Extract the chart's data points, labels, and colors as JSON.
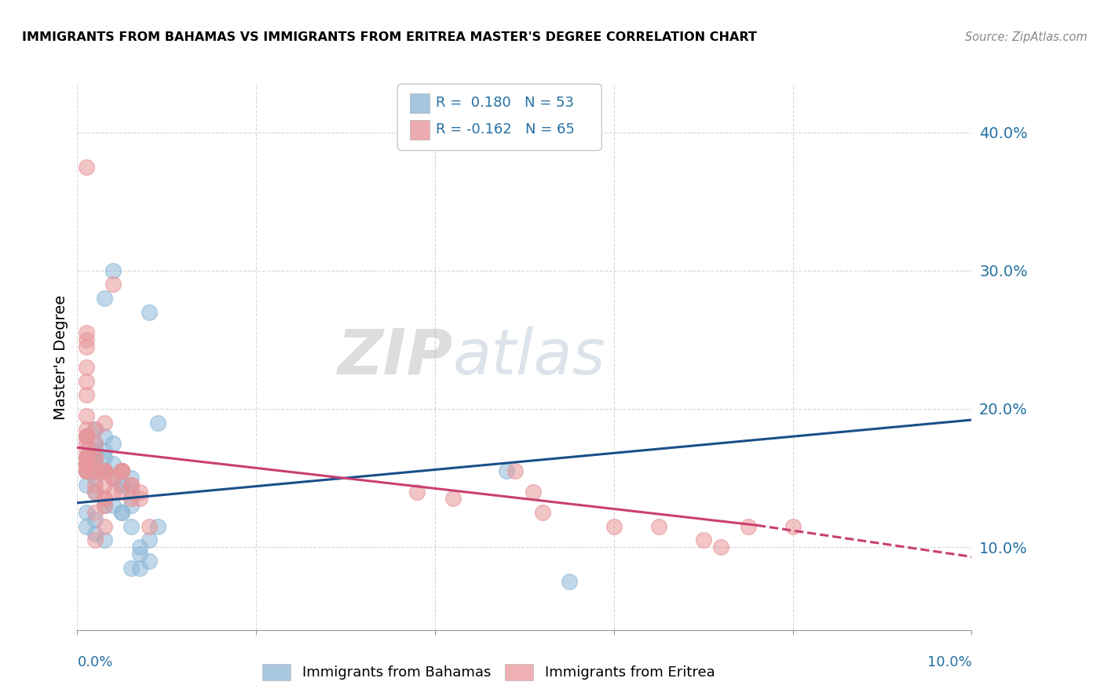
{
  "title": "IMMIGRANTS FROM BAHAMAS VS IMMIGRANTS FROM ERITREA MASTER'S DEGREE CORRELATION CHART",
  "source": "Source: ZipAtlas.com",
  "ylabel": "Master's Degree",
  "y_ticks": [
    0.1,
    0.2,
    0.3,
    0.4
  ],
  "y_tick_labels": [
    "10.0%",
    "20.0%",
    "30.0%",
    "40.0%"
  ],
  "xlim": [
    0.0,
    0.1
  ],
  "ylim": [
    0.04,
    0.435
  ],
  "legend_r1": "R =  0.180",
  "legend_n1": "N = 53",
  "legend_r2": "R = -0.162",
  "legend_n2": "N = 65",
  "color_blue": "#8DB8D8",
  "color_pink": "#E8969A",
  "line_blue": "#1B4F8A",
  "line_pink": "#C94070",
  "watermark_zip": "ZIP",
  "watermark_atlas": "atlas",
  "bahamas_x": [
    0.001,
    0.002,
    0.001,
    0.001,
    0.002,
    0.001,
    0.002,
    0.001,
    0.002,
    0.003,
    0.001,
    0.002,
    0.001,
    0.002,
    0.003,
    0.002,
    0.001,
    0.002,
    0.003,
    0.002,
    0.003,
    0.002,
    0.003,
    0.002,
    0.003,
    0.004,
    0.003,
    0.004,
    0.003,
    0.003,
    0.004,
    0.005,
    0.004,
    0.005,
    0.004,
    0.005,
    0.006,
    0.005,
    0.006,
    0.005,
    0.006,
    0.007,
    0.006,
    0.007,
    0.008,
    0.007,
    0.008,
    0.009,
    0.006,
    0.008,
    0.009,
    0.048,
    0.055
  ],
  "bahamas_y": [
    0.155,
    0.17,
    0.18,
    0.165,
    0.155,
    0.16,
    0.15,
    0.145,
    0.14,
    0.13,
    0.125,
    0.12,
    0.115,
    0.11,
    0.105,
    0.16,
    0.155,
    0.165,
    0.17,
    0.175,
    0.18,
    0.185,
    0.155,
    0.165,
    0.155,
    0.16,
    0.165,
    0.175,
    0.28,
    0.155,
    0.15,
    0.145,
    0.13,
    0.125,
    0.3,
    0.155,
    0.15,
    0.145,
    0.13,
    0.125,
    0.115,
    0.095,
    0.085,
    0.085,
    0.09,
    0.1,
    0.105,
    0.115,
    0.14,
    0.27,
    0.19,
    0.155,
    0.075
  ],
  "eritrea_x": [
    0.001,
    0.001,
    0.001,
    0.001,
    0.001,
    0.001,
    0.001,
    0.001,
    0.001,
    0.001,
    0.001,
    0.001,
    0.001,
    0.001,
    0.001,
    0.001,
    0.001,
    0.002,
    0.001,
    0.002,
    0.001,
    0.002,
    0.001,
    0.002,
    0.001,
    0.002,
    0.003,
    0.002,
    0.003,
    0.002,
    0.003,
    0.002,
    0.003,
    0.002,
    0.003,
    0.002,
    0.003,
    0.003,
    0.004,
    0.003,
    0.004,
    0.003,
    0.004,
    0.005,
    0.004,
    0.005,
    0.006,
    0.005,
    0.006,
    0.007,
    0.006,
    0.007,
    0.008,
    0.005,
    0.049,
    0.051,
    0.038,
    0.042,
    0.052,
    0.06,
    0.065,
    0.07,
    0.072,
    0.075,
    0.08
  ],
  "eritrea_y": [
    0.155,
    0.165,
    0.175,
    0.185,
    0.195,
    0.21,
    0.22,
    0.23,
    0.245,
    0.255,
    0.17,
    0.18,
    0.165,
    0.155,
    0.16,
    0.25,
    0.375,
    0.155,
    0.16,
    0.165,
    0.155,
    0.155,
    0.16,
    0.175,
    0.18,
    0.185,
    0.19,
    0.165,
    0.155,
    0.145,
    0.135,
    0.125,
    0.115,
    0.105,
    0.145,
    0.14,
    0.13,
    0.155,
    0.15,
    0.155,
    0.14,
    0.135,
    0.29,
    0.155,
    0.15,
    0.155,
    0.145,
    0.14,
    0.145,
    0.14,
    0.135,
    0.135,
    0.115,
    0.155,
    0.155,
    0.14,
    0.14,
    0.135,
    0.125,
    0.115,
    0.115,
    0.105,
    0.1,
    0.115,
    0.115
  ]
}
